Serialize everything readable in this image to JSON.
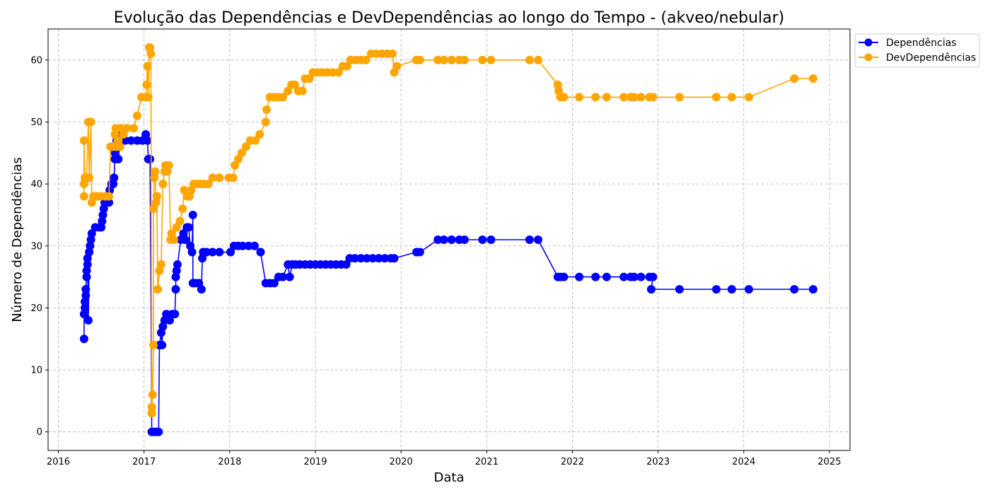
{
  "chart_data": {
    "type": "line",
    "title": "Evolução das Dependências e DevDependências ao longo do Tempo - (akveo/nebular)",
    "xlabel": "Data",
    "ylabel": "Número de Dependências",
    "x_ticks": [
      "2016",
      "2017",
      "2018",
      "2019",
      "2020",
      "2021",
      "2022",
      "2023",
      "2024",
      "2025"
    ],
    "y_ticks": [
      0,
      10,
      20,
      30,
      40,
      50,
      60
    ],
    "xlim": [
      2015.88,
      2025.24
    ],
    "ylim": [
      -3,
      65
    ],
    "grid": true,
    "legend_position": "outside-top-right",
    "series": [
      {
        "name": "Dependências",
        "color": "#0000ff",
        "points": [
          [
            2016.3,
            15
          ],
          [
            2016.3,
            19
          ],
          [
            2016.31,
            20
          ],
          [
            2016.31,
            21
          ],
          [
            2016.32,
            22
          ],
          [
            2016.32,
            23
          ],
          [
            2016.33,
            25
          ],
          [
            2016.33,
            26
          ],
          [
            2016.34,
            27
          ],
          [
            2016.34,
            28
          ],
          [
            2016.35,
            18
          ],
          [
            2016.36,
            29
          ],
          [
            2016.37,
            30
          ],
          [
            2016.38,
            31
          ],
          [
            2016.39,
            32
          ],
          [
            2016.43,
            33
          ],
          [
            2016.48,
            33
          ],
          [
            2016.5,
            33
          ],
          [
            2016.51,
            34
          ],
          [
            2016.52,
            35
          ],
          [
            2016.53,
            36
          ],
          [
            2016.54,
            37
          ],
          [
            2016.56,
            38
          ],
          [
            2016.57,
            38
          ],
          [
            2016.58,
            38
          ],
          [
            2016.59,
            37
          ],
          [
            2016.6,
            39
          ],
          [
            2016.62,
            40
          ],
          [
            2016.64,
            40
          ],
          [
            2016.65,
            41
          ],
          [
            2016.66,
            44
          ],
          [
            2016.66,
            45
          ],
          [
            2016.67,
            46
          ],
          [
            2016.68,
            47
          ],
          [
            2016.7,
            44
          ],
          [
            2016.73,
            48
          ],
          [
            2016.78,
            47
          ],
          [
            2016.85,
            47
          ],
          [
            2016.92,
            47
          ],
          [
            2016.98,
            47
          ],
          [
            2017.02,
            48
          ],
          [
            2017.04,
            47
          ],
          [
            2017.05,
            44
          ],
          [
            2017.07,
            44
          ],
          [
            2017.09,
            0
          ],
          [
            2017.12,
            0
          ],
          [
            2017.14,
            0
          ],
          [
            2017.17,
            0
          ],
          [
            2017.18,
            14
          ],
          [
            2017.2,
            16
          ],
          [
            2017.21,
            14
          ],
          [
            2017.22,
            17
          ],
          [
            2017.24,
            18
          ],
          [
            2017.26,
            19
          ],
          [
            2017.3,
            18
          ],
          [
            2017.33,
            19
          ],
          [
            2017.36,
            19
          ],
          [
            2017.37,
            23
          ],
          [
            2017.37,
            25
          ],
          [
            2017.38,
            26
          ],
          [
            2017.39,
            27
          ],
          [
            2017.43,
            31
          ],
          [
            2017.46,
            32
          ],
          [
            2017.48,
            31
          ],
          [
            2017.5,
            33
          ],
          [
            2017.52,
            33
          ],
          [
            2017.54,
            30
          ],
          [
            2017.56,
            29
          ],
          [
            2017.57,
            35
          ],
          [
            2017.57,
            24
          ],
          [
            2017.6,
            24
          ],
          [
            2017.64,
            24
          ],
          [
            2017.67,
            23
          ],
          [
            2017.68,
            28
          ],
          [
            2017.69,
            29
          ],
          [
            2017.73,
            29
          ],
          [
            2017.8,
            29
          ],
          [
            2017.88,
            29
          ],
          [
            2018.01,
            29
          ],
          [
            2018.05,
            30
          ],
          [
            2018.1,
            30
          ],
          [
            2018.15,
            30
          ],
          [
            2018.22,
            30
          ],
          [
            2018.29,
            30
          ],
          [
            2018.36,
            29
          ],
          [
            2018.42,
            24
          ],
          [
            2018.47,
            24
          ],
          [
            2018.52,
            24
          ],
          [
            2018.57,
            25
          ],
          [
            2018.62,
            25
          ],
          [
            2018.68,
            27
          ],
          [
            2018.7,
            25
          ],
          [
            2018.73,
            27
          ],
          [
            2018.77,
            27
          ],
          [
            2018.82,
            27
          ],
          [
            2018.88,
            27
          ],
          [
            2018.94,
            27
          ],
          [
            2019.0,
            27
          ],
          [
            2019.06,
            27
          ],
          [
            2019.12,
            27
          ],
          [
            2019.18,
            27
          ],
          [
            2019.24,
            27
          ],
          [
            2019.3,
            27
          ],
          [
            2019.36,
            27
          ],
          [
            2019.4,
            28
          ],
          [
            2019.46,
            28
          ],
          [
            2019.53,
            28
          ],
          [
            2019.6,
            28
          ],
          [
            2019.67,
            28
          ],
          [
            2019.74,
            28
          ],
          [
            2019.81,
            28
          ],
          [
            2019.88,
            28
          ],
          [
            2019.92,
            28
          ],
          [
            2020.18,
            29
          ],
          [
            2020.22,
            29
          ],
          [
            2020.43,
            31
          ],
          [
            2020.5,
            31
          ],
          [
            2020.59,
            31
          ],
          [
            2020.68,
            31
          ],
          [
            2020.74,
            31
          ],
          [
            2020.95,
            31
          ],
          [
            2021.05,
            31
          ],
          [
            2021.5,
            31
          ],
          [
            2021.6,
            31
          ],
          [
            2021.83,
            25
          ],
          [
            2021.86,
            25
          ],
          [
            2021.9,
            25
          ],
          [
            2022.08,
            25
          ],
          [
            2022.27,
            25
          ],
          [
            2022.4,
            25
          ],
          [
            2022.6,
            25
          ],
          [
            2022.68,
            25
          ],
          [
            2022.72,
            25
          ],
          [
            2022.8,
            25
          ],
          [
            2022.9,
            25
          ],
          [
            2022.94,
            25
          ],
          [
            2022.92,
            23
          ],
          [
            2023.25,
            23
          ],
          [
            2023.68,
            23
          ],
          [
            2023.86,
            23
          ],
          [
            2024.06,
            23
          ],
          [
            2024.59,
            23
          ],
          [
            2024.81,
            23
          ]
        ]
      },
      {
        "name": "DevDependências",
        "color": "#ffa500",
        "points": [
          [
            2016.3,
            38
          ],
          [
            2016.3,
            40
          ],
          [
            2016.3,
            47
          ],
          [
            2016.31,
            41
          ],
          [
            2016.33,
            41
          ],
          [
            2016.35,
            50
          ],
          [
            2016.36,
            41
          ],
          [
            2016.38,
            50
          ],
          [
            2016.39,
            37
          ],
          [
            2016.41,
            38
          ],
          [
            2016.45,
            38
          ],
          [
            2016.5,
            38
          ],
          [
            2016.55,
            38
          ],
          [
            2016.59,
            38
          ],
          [
            2016.61,
            46
          ],
          [
            2016.64,
            46
          ],
          [
            2016.66,
            48
          ],
          [
            2016.67,
            49
          ],
          [
            2016.68,
            46
          ],
          [
            2016.7,
            47
          ],
          [
            2016.72,
            46
          ],
          [
            2016.73,
            49
          ],
          [
            2016.76,
            48
          ],
          [
            2016.8,
            49
          ],
          [
            2016.88,
            49
          ],
          [
            2016.92,
            51
          ],
          [
            2016.97,
            54
          ],
          [
            2017.02,
            54
          ],
          [
            2017.03,
            56
          ],
          [
            2017.04,
            59
          ],
          [
            2017.05,
            54
          ],
          [
            2017.06,
            62
          ],
          [
            2017.07,
            62
          ],
          [
            2017.08,
            61
          ],
          [
            2017.09,
            3
          ],
          [
            2017.09,
            4
          ],
          [
            2017.1,
            6
          ],
          [
            2017.11,
            14
          ],
          [
            2017.11,
            36
          ],
          [
            2017.12,
            41
          ],
          [
            2017.13,
            42
          ],
          [
            2017.14,
            37
          ],
          [
            2017.15,
            38
          ],
          [
            2017.16,
            23
          ],
          [
            2017.18,
            26
          ],
          [
            2017.2,
            27
          ],
          [
            2017.22,
            40
          ],
          [
            2017.24,
            42
          ],
          [
            2017.25,
            43
          ],
          [
            2017.27,
            42
          ],
          [
            2017.29,
            43
          ],
          [
            2017.31,
            31
          ],
          [
            2017.32,
            32
          ],
          [
            2017.35,
            31
          ],
          [
            2017.38,
            33
          ],
          [
            2017.42,
            34
          ],
          [
            2017.45,
            36
          ],
          [
            2017.47,
            39
          ],
          [
            2017.5,
            38
          ],
          [
            2017.53,
            38
          ],
          [
            2017.55,
            39
          ],
          [
            2017.58,
            40
          ],
          [
            2017.62,
            40
          ],
          [
            2017.66,
            40
          ],
          [
            2017.7,
            40
          ],
          [
            2017.75,
            40
          ],
          [
            2017.8,
            41
          ],
          [
            2017.88,
            41
          ],
          [
            2017.99,
            41
          ],
          [
            2018.04,
            41
          ],
          [
            2018.06,
            43
          ],
          [
            2018.1,
            44
          ],
          [
            2018.14,
            45
          ],
          [
            2018.19,
            46
          ],
          [
            2018.24,
            47
          ],
          [
            2018.3,
            47
          ],
          [
            2018.35,
            48
          ],
          [
            2018.42,
            50
          ],
          [
            2018.43,
            52
          ],
          [
            2018.47,
            54
          ],
          [
            2018.52,
            54
          ],
          [
            2018.57,
            54
          ],
          [
            2018.62,
            54
          ],
          [
            2018.68,
            55
          ],
          [
            2018.72,
            56
          ],
          [
            2018.76,
            56
          ],
          [
            2018.8,
            55
          ],
          [
            2018.85,
            55
          ],
          [
            2018.88,
            57
          ],
          [
            2018.93,
            57
          ],
          [
            2018.97,
            58
          ],
          [
            2019.02,
            58
          ],
          [
            2019.08,
            58
          ],
          [
            2019.14,
            58
          ],
          [
            2019.2,
            58
          ],
          [
            2019.27,
            58
          ],
          [
            2019.32,
            59
          ],
          [
            2019.37,
            59
          ],
          [
            2019.41,
            60
          ],
          [
            2019.47,
            60
          ],
          [
            2019.53,
            60
          ],
          [
            2019.59,
            60
          ],
          [
            2019.65,
            61
          ],
          [
            2019.71,
            61
          ],
          [
            2019.78,
            61
          ],
          [
            2019.84,
            61
          ],
          [
            2019.9,
            61
          ],
          [
            2019.92,
            58
          ],
          [
            2019.95,
            59
          ],
          [
            2020.18,
            60
          ],
          [
            2020.22,
            60
          ],
          [
            2020.43,
            60
          ],
          [
            2020.5,
            60
          ],
          [
            2020.59,
            60
          ],
          [
            2020.68,
            60
          ],
          [
            2020.74,
            60
          ],
          [
            2020.95,
            60
          ],
          [
            2021.05,
            60
          ],
          [
            2021.5,
            60
          ],
          [
            2021.6,
            60
          ],
          [
            2021.83,
            56
          ],
          [
            2021.84,
            55
          ],
          [
            2021.86,
            54
          ],
          [
            2021.9,
            54
          ],
          [
            2022.08,
            54
          ],
          [
            2022.27,
            54
          ],
          [
            2022.4,
            54
          ],
          [
            2022.6,
            54
          ],
          [
            2022.68,
            54
          ],
          [
            2022.72,
            54
          ],
          [
            2022.8,
            54
          ],
          [
            2022.9,
            54
          ],
          [
            2022.94,
            54
          ],
          [
            2023.25,
            54
          ],
          [
            2023.68,
            54
          ],
          [
            2023.86,
            54
          ],
          [
            2024.06,
            54
          ],
          [
            2024.59,
            57
          ],
          [
            2024.81,
            57
          ]
        ]
      }
    ]
  }
}
